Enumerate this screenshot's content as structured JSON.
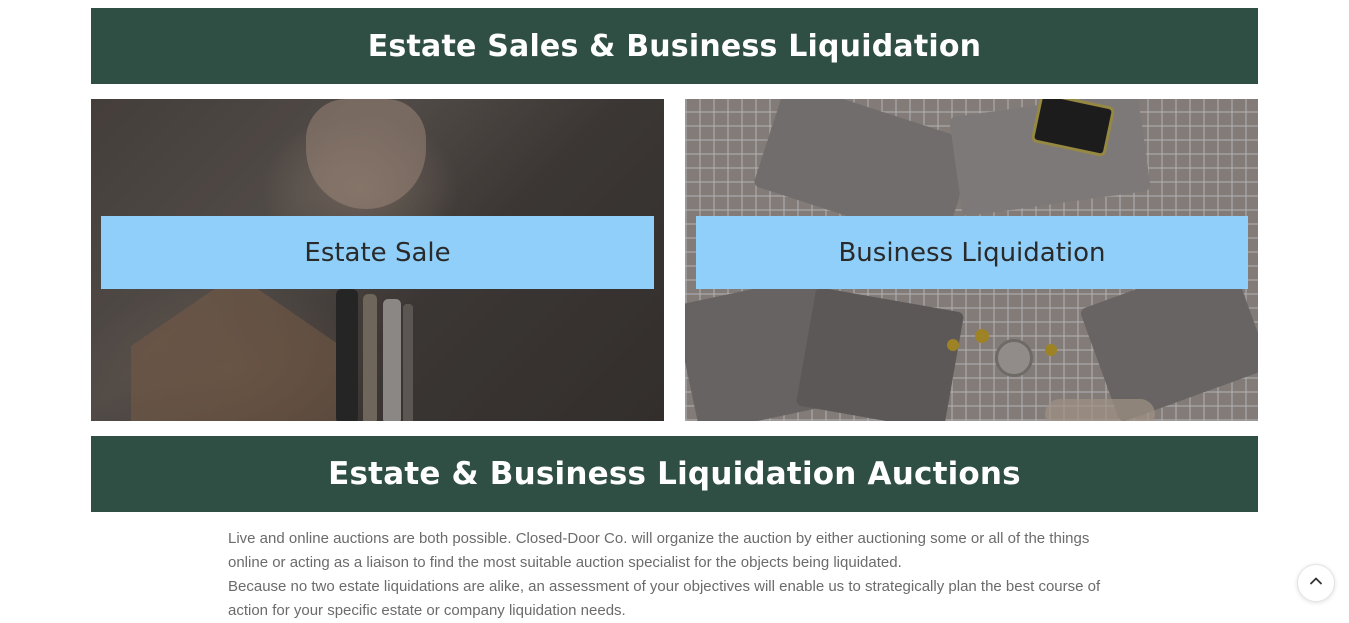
{
  "sections": {
    "top_heading": "Estate Sales & Business Liquidation",
    "bottom_heading": "Estate & Business Liquidation Auctions"
  },
  "cards": [
    {
      "label": "Estate Sale"
    },
    {
      "label": "Business Liquidation"
    }
  ],
  "body": {
    "paragraph_1": "Live and online auctions are both possible. Closed-Door Co. will organize the auction by either auctioning some or all of the things online or acting as a liaison to find the most suitable auction specialist for the objects being liquidated.",
    "paragraph_2": "Because no two estate liquidations are alike, an assessment of your objectives will enable us to strategically plan the best course of action for your specific estate or company liquidation needs."
  },
  "icons": {
    "scroll_top": "chevron-up-icon"
  },
  "colors": {
    "banner": "#304f44",
    "card_label": "#8fcff9",
    "body_text": "#6b6b6b"
  }
}
